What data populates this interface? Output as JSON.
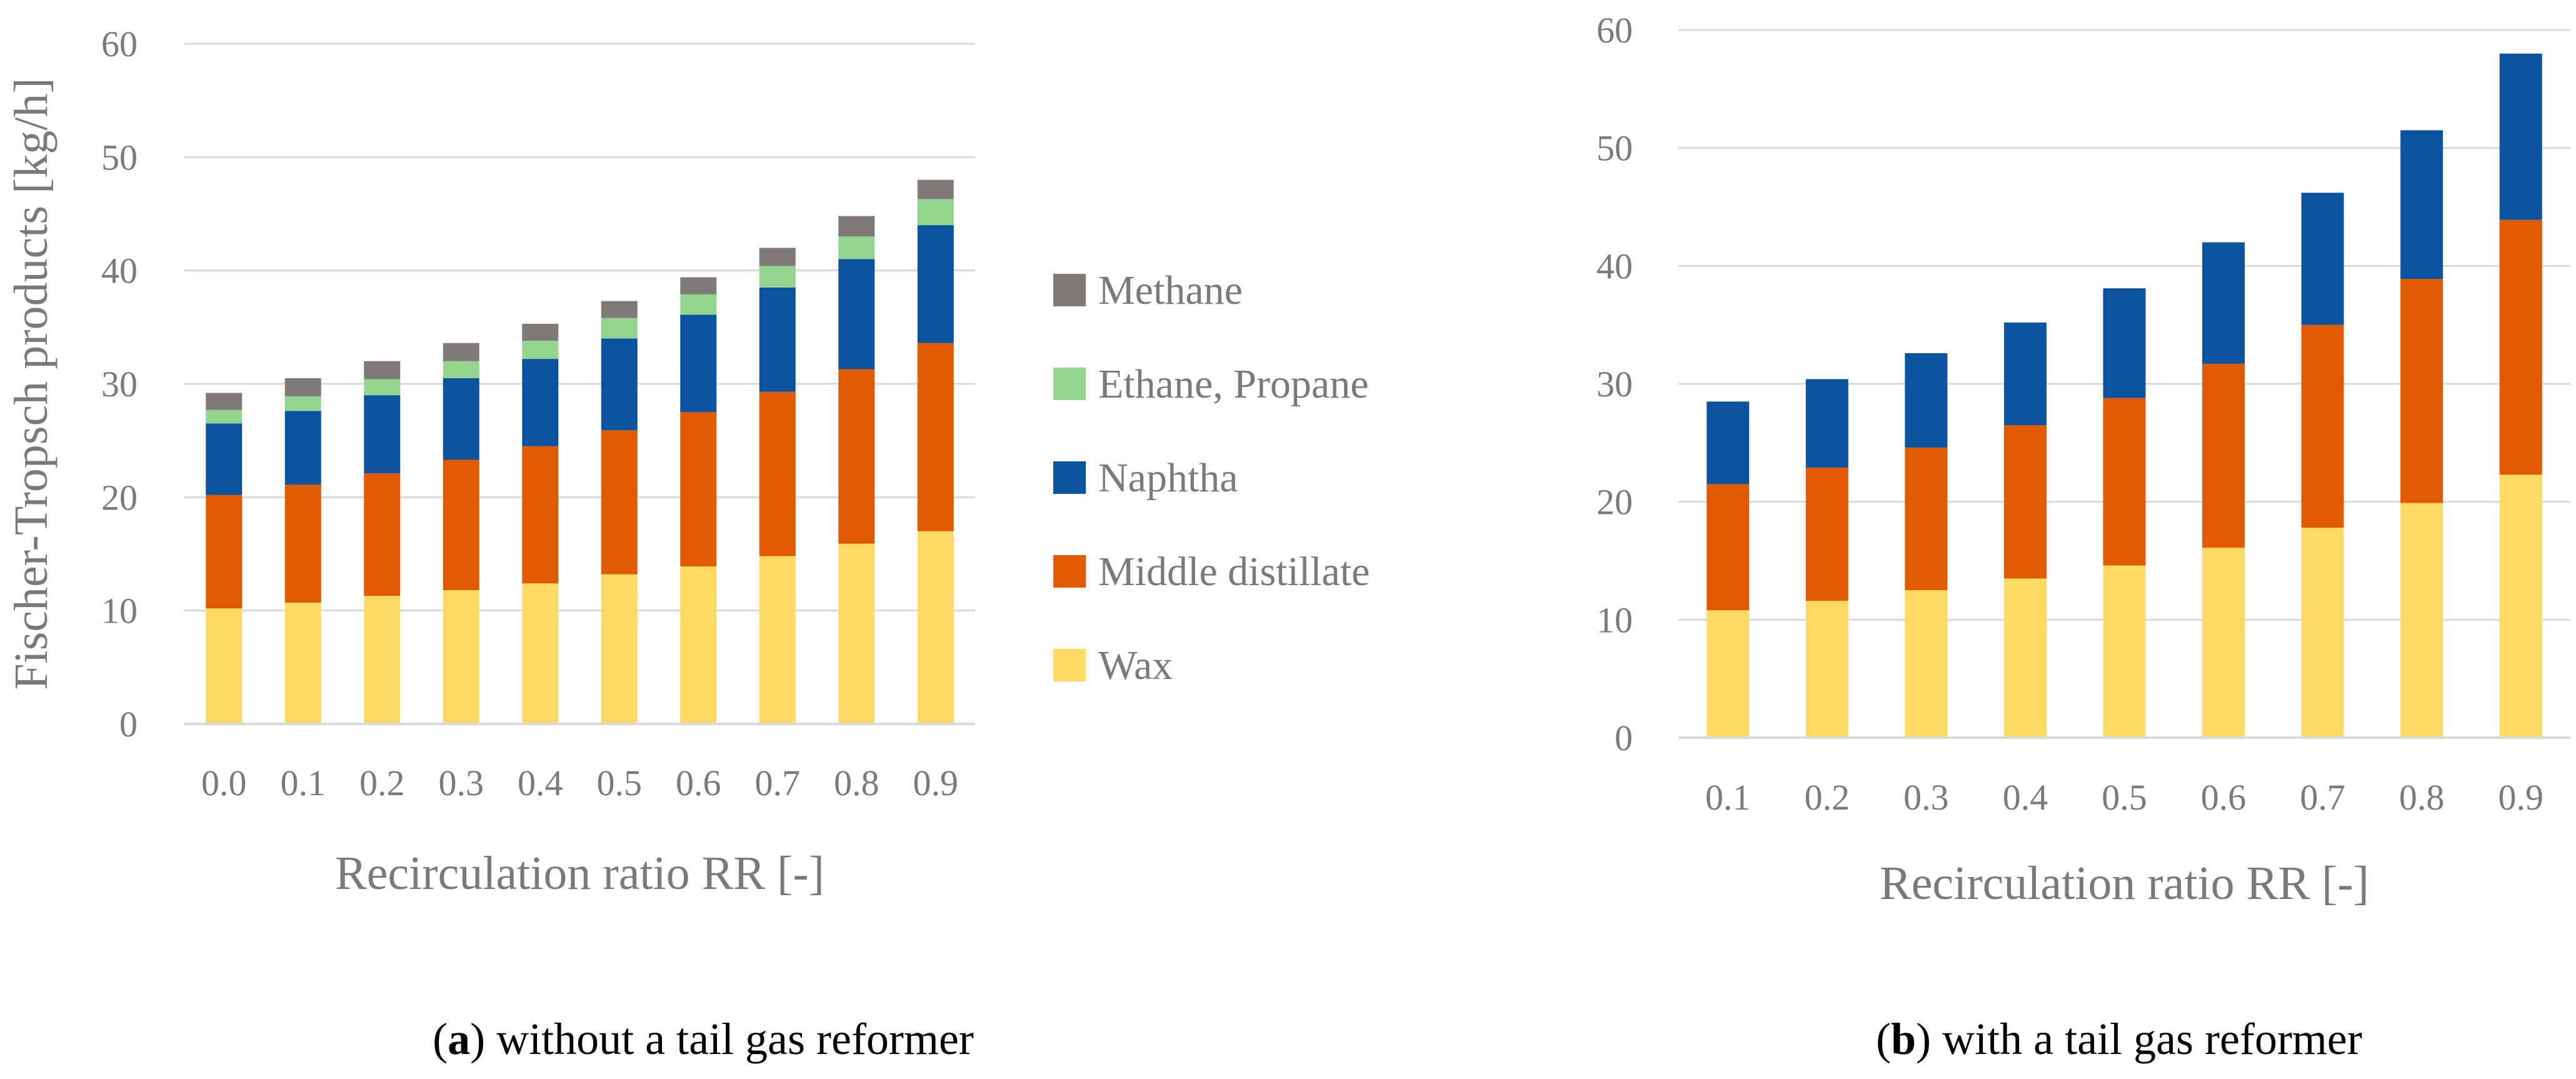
{
  "colors": {
    "Wax": "#ffd966",
    "Middle distillate": "#e05a00",
    "Naphtha": "#0b52a0",
    "Ethane, Propane": "#93d58f",
    "Methane": "#7f7a78",
    "text": "#7a7a7a",
    "grid": "#d9d9d9"
  },
  "legend": {
    "placement": "right of chart a",
    "items": [
      "Methane",
      "Ethane, Propane",
      "Naphtha",
      "Middle distillate",
      "Wax"
    ]
  },
  "captions": {
    "a": {
      "letter": "a",
      "open": "(",
      "text": ") without a tail gas reformer"
    },
    "b": {
      "letter": "b",
      "open": "(",
      "text": ") with a tail gas reformer"
    }
  },
  "chart_data": [
    {
      "id": "a",
      "type": "bar",
      "stacked": true,
      "xlabel": "Recirculation ratio RR [-]",
      "ylabel": "Fischer-Tropsch products [kg/h]",
      "ylim": [
        0,
        60
      ],
      "yticks": [
        "0",
        "10",
        "20",
        "30",
        "40",
        "50",
        "60"
      ],
      "grid": true,
      "categories": [
        "0.0",
        "0.1",
        "0.2",
        "0.3",
        "0.4",
        "0.5",
        "0.6",
        "0.7",
        "0.8",
        "0.9"
      ],
      "series": [
        {
          "name": "Wax",
          "values": [
            10.2,
            10.7,
            11.3,
            11.8,
            12.4,
            13.2,
            13.9,
            14.8,
            15.9,
            17.0
          ]
        },
        {
          "name": "Middle distillate",
          "values": [
            10.0,
            10.4,
            10.8,
            11.5,
            12.1,
            12.7,
            13.6,
            14.5,
            15.4,
            16.6
          ]
        },
        {
          "name": "Naphtha",
          "values": [
            6.3,
            6.5,
            6.9,
            7.2,
            7.7,
            8.1,
            8.6,
            9.2,
            9.7,
            10.4
          ]
        },
        {
          "name": "Ethane, Propane",
          "values": [
            1.2,
            1.3,
            1.4,
            1.5,
            1.6,
            1.8,
            1.8,
            1.9,
            2.0,
            2.3
          ]
        },
        {
          "name": "Methane",
          "values": [
            1.5,
            1.6,
            1.6,
            1.6,
            1.5,
            1.5,
            1.5,
            1.6,
            1.8,
            1.7
          ]
        }
      ]
    },
    {
      "id": "b",
      "type": "bar",
      "stacked": true,
      "xlabel": "Recirculation ratio RR [-]",
      "ylabel": "",
      "ylim": [
        0,
        60
      ],
      "yticks": [
        "0",
        "10",
        "20",
        "30",
        "40",
        "50",
        "60"
      ],
      "grid": true,
      "categories": [
        "0.1",
        "0.2",
        "0.3",
        "0.4",
        "0.5",
        "0.6",
        "0.7",
        "0.8",
        "0.9"
      ],
      "series": [
        {
          "name": "Wax",
          "values": [
            10.8,
            11.6,
            12.5,
            13.5,
            14.6,
            16.1,
            17.8,
            19.9,
            22.3
          ]
        },
        {
          "name": "Middle distillate",
          "values": [
            10.7,
            11.3,
            12.1,
            13.0,
            14.2,
            15.6,
            17.2,
            19.0,
            21.6
          ]
        },
        {
          "name": "Naphtha",
          "values": [
            7.0,
            7.5,
            8.0,
            8.7,
            9.3,
            10.3,
            11.2,
            12.6,
            14.1
          ]
        }
      ]
    }
  ]
}
